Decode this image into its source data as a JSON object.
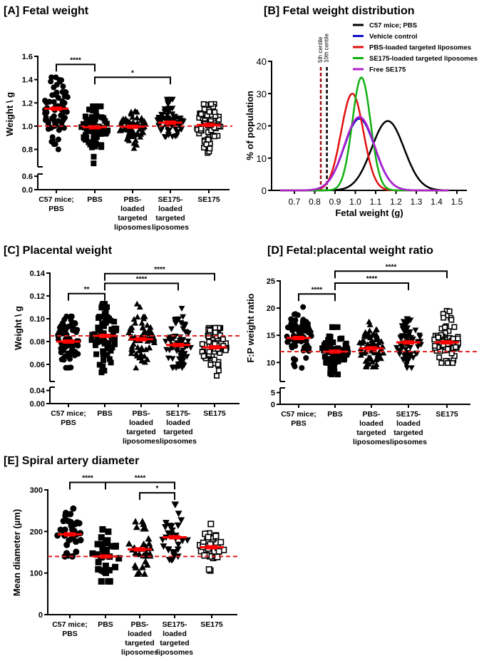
{
  "colors": {
    "mean_bar": "#ff0000",
    "reference_line": "#e02020",
    "markers": "#000000"
  },
  "chart_data": [
    {
      "panel": "A",
      "type": "scatter",
      "title": "[A] Fetal weight",
      "xlabel": "",
      "ylabel": "Weight \\ g",
      "categories": [
        [
          "C57 mice;",
          "PBS"
        ],
        [
          "PBS"
        ],
        [
          "PBS-",
          "loaded",
          "targeted",
          "liposomes"
        ],
        [
          "SE175-",
          "loaded",
          "targeted",
          "liposomes"
        ],
        [
          "SE175"
        ]
      ],
      "markers": [
        "filled-circle",
        "filled-square",
        "filled-triangle-up",
        "filled-triangle-down",
        "open-square"
      ],
      "yticks_upper": [
        "0.8",
        "1.0",
        "1.2",
        "1.4",
        "1.6"
      ],
      "yticks_lower": [
        "0.0",
        "0.6"
      ],
      "ylim_upper": [
        0.65,
        1.6
      ],
      "ylim_lower": [
        0,
        0.7
      ],
      "axis_break": true,
      "groups": [
        {
          "mean": 1.15,
          "min": 0.8,
          "max": 1.42
        },
        {
          "mean": 0.99,
          "min": 0.68,
          "max": 1.17
        },
        {
          "mean": 0.995,
          "min": 0.81,
          "max": 1.13
        },
        {
          "mean": 1.03,
          "min": 0.91,
          "max": 1.23
        },
        {
          "mean": 1.01,
          "min": 0.77,
          "max": 1.19
        }
      ],
      "reference_line": 1.0,
      "significance": [
        {
          "from": 0,
          "to": 1,
          "level": 1.53,
          "label": "****"
        },
        {
          "from": 1,
          "to": 3,
          "level": 1.42,
          "label": "*"
        }
      ]
    },
    {
      "panel": "B",
      "type": "line",
      "title": "[B] Fetal weight distribution",
      "xlabel": "Fetal weight (g)",
      "ylabel": "% of population",
      "xlim": [
        0.6,
        1.55
      ],
      "ylim": [
        0,
        40
      ],
      "xticks": [
        "0.7",
        "0.8",
        "0.9",
        "1.0",
        "1.1",
        "1.2",
        "1.3",
        "1.4",
        "1.5"
      ],
      "yticks": [
        "0",
        "10",
        "20",
        "30",
        "40"
      ],
      "legend_position": "top-right",
      "series": [
        {
          "name": "C57 mice; PBS",
          "color": "#000000",
          "peak_x": 1.16,
          "peak_y": 21.5,
          "sd": 0.08
        },
        {
          "name": "Vehicle control",
          "color": "#1010c8",
          "peak_x": 1.02,
          "peak_y": 22.2,
          "sd": 0.075
        },
        {
          "name": "PBS-loaded targeted liposomes",
          "color": "#e01010",
          "peak_x": 0.985,
          "peak_y": 30,
          "sd": 0.055
        },
        {
          "name": "SE175-loaded targeted liposomes",
          "color": "#10b010",
          "peak_x": 1.03,
          "peak_y": 35,
          "sd": 0.045
        },
        {
          "name": "Free SE175",
          "color": "#b020d0",
          "peak_x": 1.02,
          "peak_y": 22.8,
          "sd": 0.075
        }
      ],
      "centiles": [
        {
          "label": "5th centile",
          "x": 0.83,
          "color": "#a01010"
        },
        {
          "label": "10th centile",
          "x": 0.86,
          "color": "#000000"
        }
      ]
    },
    {
      "panel": "C",
      "type": "scatter",
      "title": "[C] Placental weight",
      "xlabel": "",
      "ylabel": "Weight \\ g",
      "categories": [
        [
          "C57 mice;",
          "PBS"
        ],
        [
          "PBS"
        ],
        [
          "PBS-",
          "loaded",
          "targeted",
          "liposomes"
        ],
        [
          "SE175-",
          "loaded",
          "targeted",
          "liposomes"
        ],
        [
          "SE175"
        ]
      ],
      "markers": [
        "filled-circle",
        "filled-square",
        "filled-triangle-up",
        "filled-triangle-down",
        "open-square"
      ],
      "yticks_upper": [
        "0.06",
        "0.08",
        "0.10",
        "0.12",
        "0.14"
      ],
      "yticks_lower": [
        "0.00",
        "0.04"
      ],
      "ylim_upper": [
        0.045,
        0.14
      ],
      "ylim_lower": [
        0,
        0.05
      ],
      "axis_break": true,
      "groups": [
        {
          "mean": 0.08,
          "min": 0.057,
          "max": 0.102
        },
        {
          "mean": 0.085,
          "min": 0.053,
          "max": 0.113
        },
        {
          "mean": 0.082,
          "min": 0.057,
          "max": 0.113
        },
        {
          "mean": 0.077,
          "min": 0.057,
          "max": 0.109
        },
        {
          "mean": 0.075,
          "min": 0.05,
          "max": 0.092
        }
      ],
      "reference_line": 0.085,
      "significance": [
        {
          "from": 0,
          "to": 1,
          "level": 0.122,
          "label": "**"
        },
        {
          "from": 1,
          "to": 3,
          "level": 0.131,
          "label": "****"
        },
        {
          "from": 1,
          "to": 4,
          "level": 0.1395,
          "label": "****"
        }
      ]
    },
    {
      "panel": "D",
      "type": "scatter",
      "title": "[D] Fetal:placental weight ratio",
      "xlabel": "",
      "ylabel": "F:P weight ratio",
      "categories": [
        [
          "C57 mice;",
          "PBS"
        ],
        [
          "PBS"
        ],
        [
          "PBS-",
          "loaded",
          "targeted",
          "liposomes"
        ],
        [
          "SE175-",
          "loaded",
          "targeted",
          "liposomes"
        ],
        [
          "SE175"
        ]
      ],
      "markers": [
        "filled-circle",
        "filled-square",
        "filled-triangle-up",
        "filled-triangle-down",
        "open-square"
      ],
      "yticks_upper": [
        "10",
        "15",
        "20",
        "25"
      ],
      "yticks_lower": [
        "0",
        "5"
      ],
      "ylim_upper": [
        6.5,
        25
      ],
      "ylim_lower": [
        0,
        7
      ],
      "axis_break": true,
      "groups": [
        {
          "mean": 14.5,
          "min": 9.0,
          "max": 20.2
        },
        {
          "mean": 12.0,
          "min": 7.8,
          "max": 16.5
        },
        {
          "mean": 12.6,
          "min": 9.2,
          "max": 17.5
        },
        {
          "mean": 13.7,
          "min": 9.0,
          "max": 18.0
        },
        {
          "mean": 13.7,
          "min": 9.9,
          "max": 19.5
        }
      ],
      "reference_line": 12.0,
      "significance": [
        {
          "from": 0,
          "to": 1,
          "level": 22.6,
          "label": "****"
        },
        {
          "from": 1,
          "to": 3,
          "level": 24.6,
          "label": "****"
        },
        {
          "from": 1,
          "to": 4,
          "level": 26.8,
          "label": "****"
        }
      ]
    },
    {
      "panel": "E",
      "type": "scatter",
      "title": "[E] Spiral artery diameter",
      "xlabel": "",
      "ylabel": "Mean diameter (µm)",
      "categories": [
        [
          "C57 mice;",
          "PBS"
        ],
        [
          "PBS"
        ],
        [
          "PBS-",
          "loaded",
          "targeted",
          "liposomes"
        ],
        [
          "SE175-",
          "loaded",
          "targeted",
          "liposomes"
        ],
        [
          "SE175"
        ]
      ],
      "markers": [
        "filled-circle",
        "filled-square",
        "filled-triangle-up",
        "filled-triangle-down",
        "open-square"
      ],
      "yticks_upper": [
        "0",
        "100",
        "200",
        "300"
      ],
      "yticks_lower": [],
      "ylim_upper": [
        0,
        300
      ],
      "axis_break": false,
      "groups": [
        {
          "mean": 193,
          "min": 140,
          "max": 255
        },
        {
          "mean": 140,
          "min": 80,
          "max": 205
        },
        {
          "mean": 157,
          "min": 98,
          "max": 224
        },
        {
          "mean": 186,
          "min": 132,
          "max": 265
        },
        {
          "mean": 162,
          "min": 106,
          "max": 218
        }
      ],
      "reference_line": 140,
      "significance": [
        {
          "from": 0,
          "to": 1,
          "level": 318,
          "label": "****"
        },
        {
          "from": 1,
          "to": 3,
          "level": 318,
          "label": "****"
        },
        {
          "from": 2,
          "to": 3,
          "level": 293,
          "label": "*"
        }
      ]
    }
  ]
}
